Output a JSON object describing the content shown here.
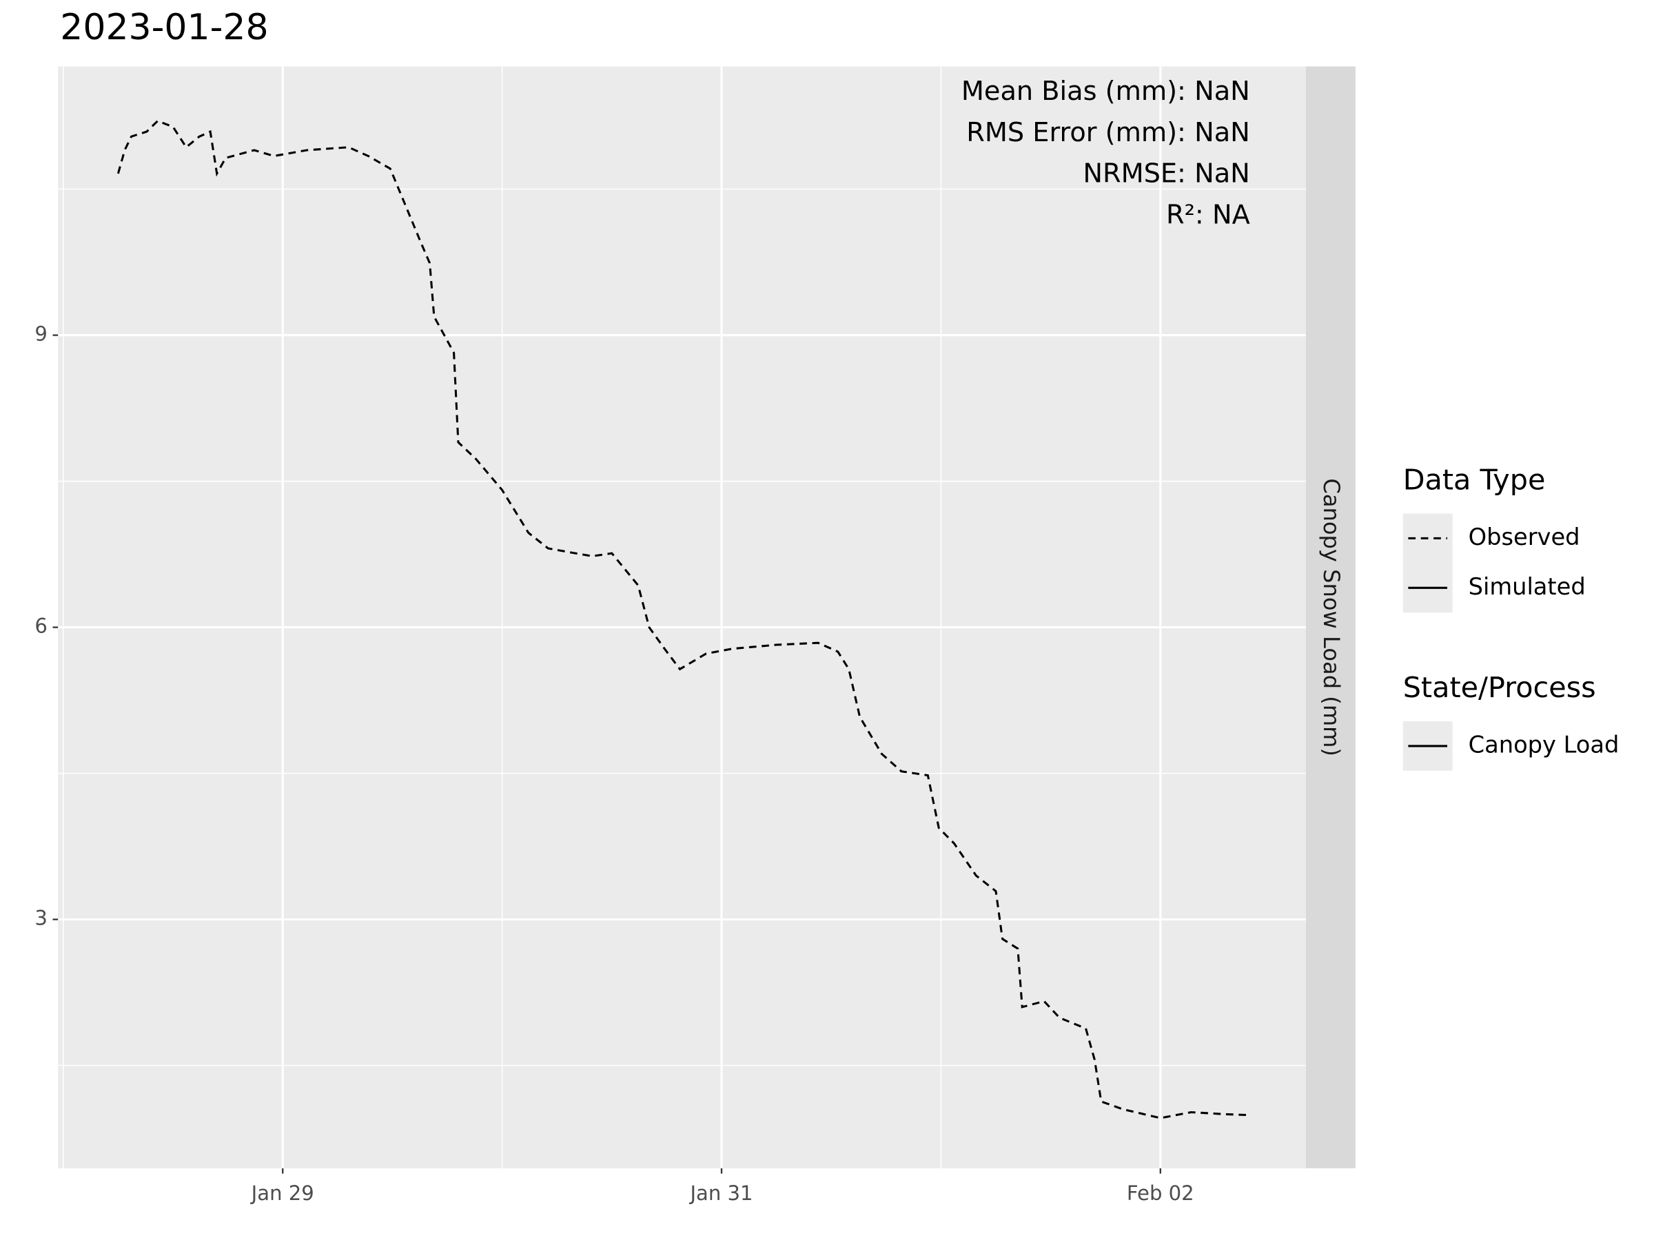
{
  "chart_data": {
    "type": "line",
    "title": "2023-01-28",
    "x": [
      0.25,
      0.28,
      0.31,
      0.38,
      0.43,
      0.5,
      0.56,
      0.62,
      0.67,
      0.7,
      0.74,
      0.87,
      0.96,
      1.11,
      1.3,
      1.39,
      1.49,
      1.56,
      1.63,
      1.67,
      1.69,
      1.78,
      1.8,
      1.88,
      2.0,
      2.12,
      2.21,
      2.41,
      2.5,
      2.62,
      2.67,
      2.74,
      2.81,
      2.93,
      3.05,
      3.25,
      3.44,
      3.53,
      3.58,
      3.63,
      3.73,
      3.82,
      3.94,
      3.99,
      4.06,
      4.16,
      4.25,
      4.28,
      4.35,
      4.37,
      4.47,
      4.54,
      4.66,
      4.7,
      4.73,
      4.83,
      5.0,
      5.14,
      5.29,
      5.41
    ],
    "series": [
      {
        "name": "Observed",
        "color": "#000000",
        "linetype": "dashed",
        "values": [
          10.66,
          10.9,
          11.04,
          11.09,
          11.2,
          11.14,
          10.93,
          11.04,
          11.09,
          10.66,
          10.82,
          10.9,
          10.84,
          10.9,
          10.93,
          10.84,
          10.71,
          10.33,
          9.95,
          9.74,
          9.19,
          8.82,
          7.9,
          7.73,
          7.41,
          6.97,
          6.81,
          6.73,
          6.76,
          6.43,
          6.0,
          5.78,
          5.57,
          5.73,
          5.78,
          5.82,
          5.84,
          5.75,
          5.57,
          5.08,
          4.7,
          4.52,
          4.48,
          3.94,
          3.78,
          3.45,
          3.29,
          2.8,
          2.7,
          2.1,
          2.16,
          1.99,
          1.88,
          1.56,
          1.13,
          1.05,
          0.96,
          1.02,
          1.0,
          0.99
        ]
      }
    ],
    "xlim": [
      -0.024,
      5.663
    ],
    "xticks": [
      {
        "value": 1,
        "label": "Jan 29"
      },
      {
        "value": 3,
        "label": "Jan 31"
      },
      {
        "value": 5,
        "label": "Feb 02"
      }
    ],
    "ylim": [
      0.444,
      11.76
    ],
    "yticks": [
      3,
      6,
      9
    ],
    "grid": true,
    "facet_label": "Canopy Snow Load (mm)",
    "annotations": [
      "Mean Bias (mm): NaN",
      "RMS Error (mm): NaN",
      "NRMSE: NaN",
      "R²: NA"
    ],
    "legends": [
      {
        "title": "Data Type",
        "items": [
          {
            "label": "Observed",
            "linetype": "dashed"
          },
          {
            "label": "Simulated",
            "linetype": "solid"
          }
        ]
      },
      {
        "title": "State/Process",
        "items": [
          {
            "label": "Canopy Load",
            "linetype": "solid"
          }
        ]
      }
    ]
  }
}
